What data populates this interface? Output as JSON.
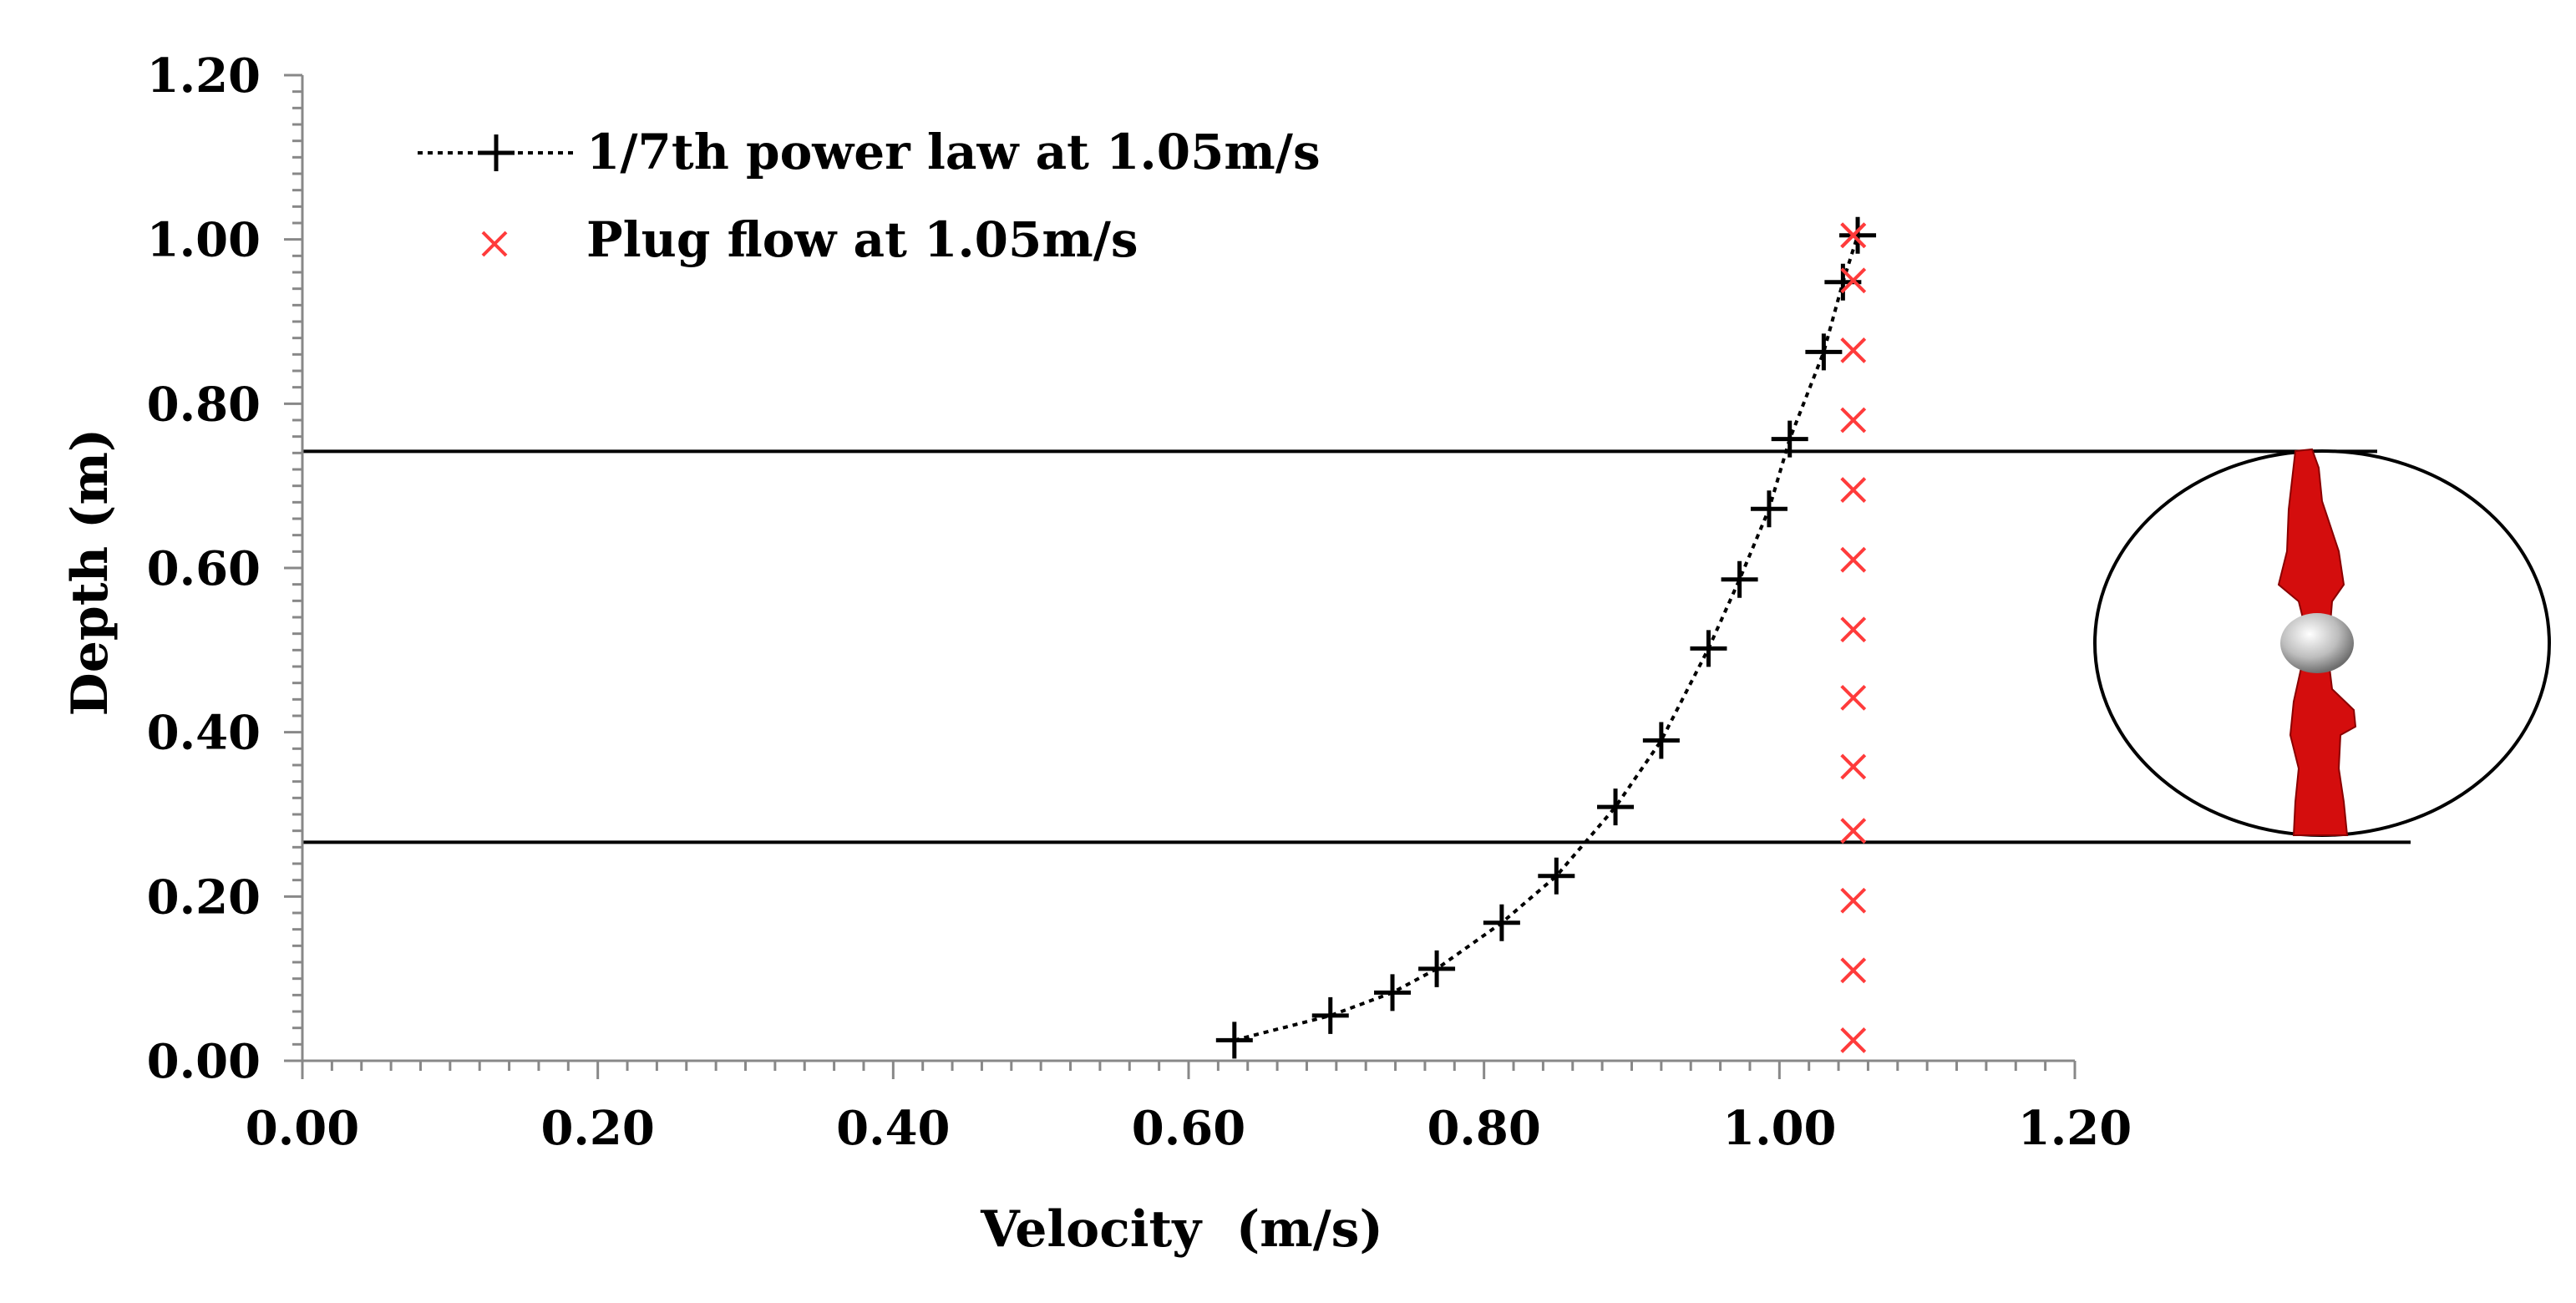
{
  "chart_data": {
    "type": "line",
    "xlabel": "Velocity  (m/s)",
    "ylabel": "Depth (m)",
    "xlim": [
      0,
      1.2
    ],
    "ylim": [
      0,
      1.2
    ],
    "xticks": [
      "0.00",
      "0.20",
      "0.40",
      "0.60",
      "0.80",
      "1.00",
      "1.20"
    ],
    "yticks": [
      "0.00",
      "0.20",
      "0.40",
      "0.60",
      "0.80",
      "1.00",
      "1.20"
    ],
    "legend_position": "top-left",
    "series": [
      {
        "name": "1/7th power law at 1.05m/s",
        "marker": "plus",
        "line": "dotted",
        "color": "#000000",
        "x": [
          0.631,
          0.696,
          0.738,
          0.768,
          0.812,
          0.849,
          0.889,
          0.92,
          0.952,
          0.973,
          0.993,
          1.007,
          1.03,
          1.043,
          1.053
        ],
        "y": [
          0.025,
          0.055,
          0.083,
          0.112,
          0.168,
          0.225,
          0.309,
          0.39,
          0.502,
          0.586,
          0.672,
          0.757,
          0.863,
          0.948,
          1.005
        ]
      },
      {
        "name": "Plug flow at 1.05m/s",
        "marker": "x",
        "line": "none",
        "color": "#ff3b3b",
        "x": [
          1.05,
          1.05,
          1.05,
          1.05,
          1.05,
          1.05,
          1.05,
          1.05,
          1.05,
          1.05,
          1.05,
          1.05,
          1.05,
          1.05,
          1.05
        ],
        "y": [
          0.025,
          0.11,
          0.195,
          0.28,
          0.358,
          0.442,
          0.525,
          0.61,
          0.695,
          0.78,
          0.865,
          0.95,
          1.005,
          1.005,
          1.005
        ]
      }
    ],
    "annotations": {
      "swept_area_top_depth": 0.742,
      "swept_area_bottom_depth": 0.266,
      "rotor_inset": "turbine-rotor-side-view"
    }
  }
}
